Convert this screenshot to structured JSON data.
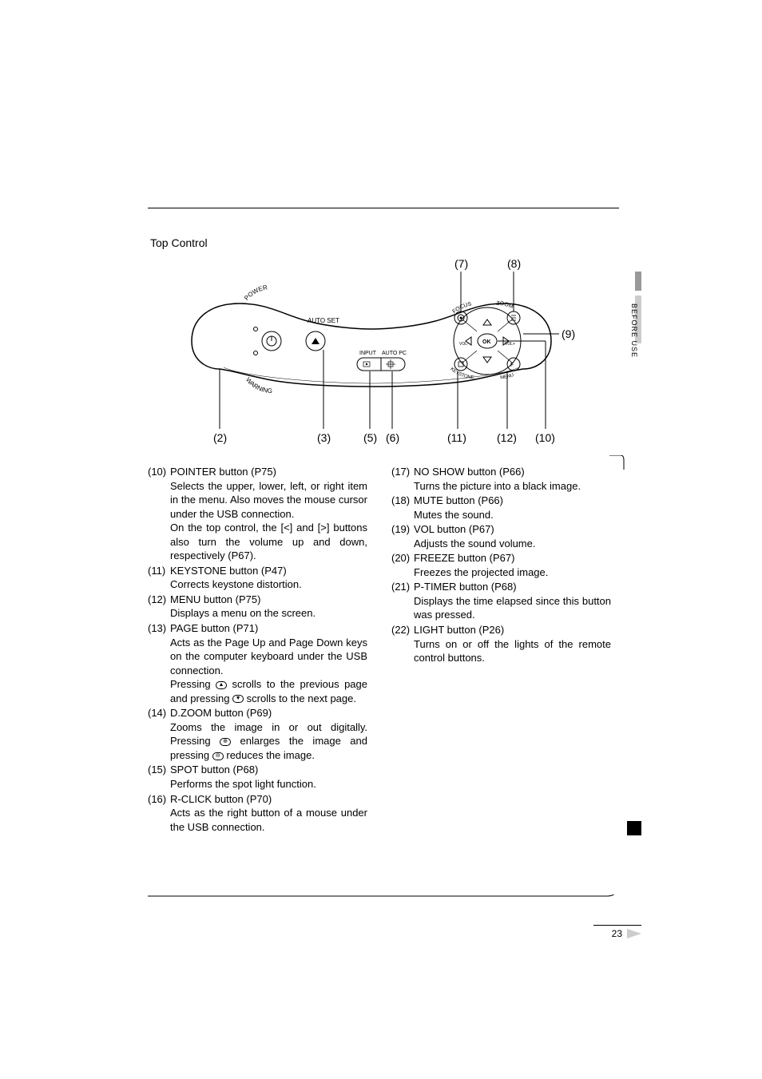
{
  "header": {
    "top_control": "Top Control"
  },
  "side": {
    "tab_text": "BEFORE USE"
  },
  "callouts": {
    "c7": "(7)",
    "c8": "(8)",
    "c9": "(9)",
    "c2": "(2)",
    "c3": "(3)",
    "c5": "(5)",
    "c6": "(6)",
    "c11": "(11)",
    "c12": "(12)",
    "c10": "(10)"
  },
  "diagram_labels": {
    "power": "POWER",
    "auto_set": "AUTO SET",
    "warning": "WARNING",
    "input": "INPUT",
    "auto_pc": "AUTO PC",
    "focus": "FOCUS",
    "zoom": "ZOOM",
    "ok": "OK",
    "vol_minus": "VOL-",
    "vol_plus": "VOL+",
    "keystone": "KEYSTONE",
    "menu": "MENU"
  },
  "left_col": [
    {
      "num": "(10)",
      "title": "POINTER button (P75)",
      "desc": "Selects the upper, lower, left, or right item in the menu. Also moves the mouse cursor under the USB connection.",
      "desc2": "On the top control, the [<] and [>] buttons also turn the volume up and down, respectively (P67)."
    },
    {
      "num": "(11)",
      "title": "KEYSTONE button (P47)",
      "desc": "Corrects keystone distortion."
    },
    {
      "num": "(12)",
      "title": "MENU button (P75)",
      "desc": "Displays a menu on the screen."
    },
    {
      "num": "(13)",
      "title": "PAGE button (P71)",
      "desc": "Acts as the Page Up and Page Down keys on the computer keyboard under the USB connection.",
      "desc2a": "Pressing ",
      "desc2b": " scrolls to the previous page and pressing ",
      "desc2c": " scrolls to the next page."
    },
    {
      "num": "(14)",
      "title": "D.ZOOM button (P69)",
      "desc_a": "Zooms the image in or out digitally. Pressing ",
      "desc_b": " enlarges the image and pressing ",
      "desc_c": " reduces the image."
    },
    {
      "num": "(15)",
      "title": "SPOT button (P68)",
      "desc": "Performs the spot light function."
    },
    {
      "num": "(16)",
      "title": "R-CLICK button (P70)",
      "desc": "Acts as the right button of a mouse under the USB connection."
    }
  ],
  "right_col": [
    {
      "num": "(17)",
      "title": "NO SHOW button (P66)",
      "desc": "Turns the picture into a black image."
    },
    {
      "num": "(18)",
      "title": "MUTE button (P66)",
      "desc": "Mutes the sound."
    },
    {
      "num": "(19)",
      "title": "VOL button (P67)",
      "desc": "Adjusts the sound volume."
    },
    {
      "num": "(20)",
      "title": "FREEZE button (P67)",
      "desc": "Freezes the projected image."
    },
    {
      "num": "(21)",
      "title": "P-TIMER button (P68)",
      "desc": "Displays the time elapsed since this button was pressed."
    },
    {
      "num": "(22)",
      "title": "LIGHT button (P26)",
      "desc": "Turns on or off the lights of the remote control buttons."
    }
  ],
  "page": {
    "number": "23"
  },
  "colors": {
    "text": "#000000",
    "bg": "#ffffff",
    "accent_gray": "#cccccc",
    "mid_gray": "#999999"
  }
}
